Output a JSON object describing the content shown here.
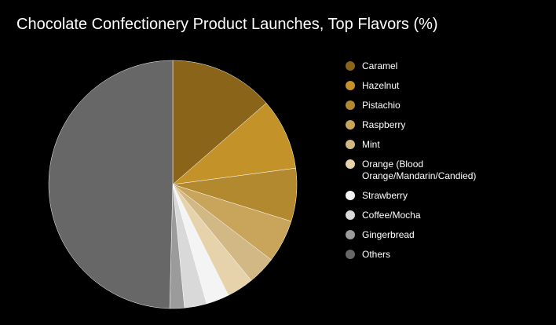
{
  "chart_data": {
    "type": "pie",
    "title": "Chocolate Confectionery Product Launches, Top Flavors (%)",
    "legend_position": "right",
    "slices": [
      {
        "label": "Caramel",
        "value": 13.6,
        "color": "#8a6419"
      },
      {
        "label": "Hazelnut",
        "value": 9.3,
        "color": "#c39228"
      },
      {
        "label": "Pistachio",
        "value": 6.9,
        "color": "#b2892f"
      },
      {
        "label": "Raspberry",
        "value": 5.6,
        "color": "#c9a55c"
      },
      {
        "label": "Mint",
        "value": 3.7,
        "color": "#d1b885"
      },
      {
        "label": "Orange (Blood Orange/Mandarin/Candied)",
        "value": 3.5,
        "color": "#e6d3ac"
      },
      {
        "label": "Strawberry",
        "value": 3.0,
        "color": "#f4f4f4"
      },
      {
        "label": "Coffee/Mocha",
        "value": 2.9,
        "color": "#d9d9d9"
      },
      {
        "label": "Gingerbread",
        "value": 1.9,
        "color": "#9b9b9b"
      },
      {
        "label": "Others",
        "value": 49.6,
        "color": "#676767"
      }
    ]
  }
}
